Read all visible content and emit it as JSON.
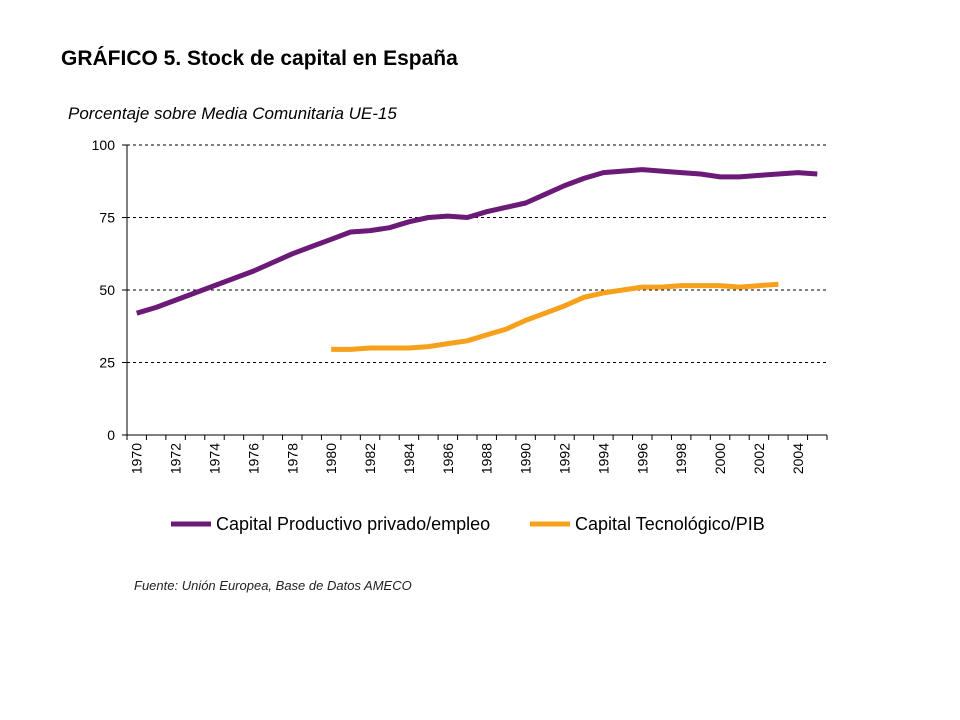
{
  "chart_data": {
    "type": "line",
    "title": "GRÁFICO 5. Stock de capital en España",
    "subtitle": "Porcentaje sobre Media Comunitaria UE-15",
    "source": "Fuente: Unión Europea, Base de Datos AMECO",
    "xlabel": "",
    "ylabel": "",
    "x_tick_labels": [
      "1970",
      "1972",
      "1974",
      "1976",
      "1978",
      "1980",
      "1982",
      "1984",
      "1986",
      "1988",
      "1990",
      "1992",
      "1994",
      "1996",
      "1998",
      "2000",
      "2002",
      "2004"
    ],
    "y_tick_labels": [
      "100",
      "75",
      "50",
      "25",
      "0"
    ],
    "xlim": [
      1970,
      2005
    ],
    "ylim": [
      0,
      100
    ],
    "y_ticks": [
      0,
      25,
      50,
      75,
      100
    ],
    "grid": "horizontal dashed",
    "legend_position": "bottom",
    "series": [
      {
        "name": "Capital Productivo privado/empleo",
        "color": "#6b1a78",
        "x": [
          1970,
          1971,
          1972,
          1973,
          1974,
          1975,
          1976,
          1977,
          1978,
          1979,
          1980,
          1981,
          1982,
          1983,
          1984,
          1985,
          1986,
          1987,
          1988,
          1989,
          1990,
          1991,
          1992,
          1993,
          1994,
          1995,
          1996,
          1997,
          1998,
          1999,
          2000,
          2001,
          2002,
          2003,
          2004,
          2005
        ],
        "values": [
          42,
          44,
          46.5,
          49,
          51.5,
          54,
          56.5,
          59.5,
          62.5,
          65,
          67.5,
          70,
          70.5,
          71.5,
          73.5,
          75,
          75.5,
          75,
          77,
          78.5,
          80,
          83,
          86,
          88.5,
          90.5,
          91,
          91.5,
          91,
          90.5,
          90,
          89,
          89,
          89.5,
          90,
          90.5,
          90
        ]
      },
      {
        "name": "Capital Tecnológico/PIB",
        "color": "#f7a01c",
        "x": [
          1980,
          1981,
          1982,
          1983,
          1984,
          1985,
          1986,
          1987,
          1988,
          1989,
          1990,
          1991,
          1992,
          1993,
          1994,
          1995,
          1996,
          1997,
          1998,
          1999,
          2000,
          2001,
          2002,
          2003
        ],
        "values": [
          29.5,
          29.5,
          30,
          30,
          30,
          30.5,
          31.5,
          32.5,
          34.5,
          36.5,
          39.5,
          42,
          44.5,
          47.5,
          49,
          50,
          51,
          51,
          51.5,
          51.5,
          51.5,
          51,
          51.5,
          52
        ]
      }
    ]
  }
}
